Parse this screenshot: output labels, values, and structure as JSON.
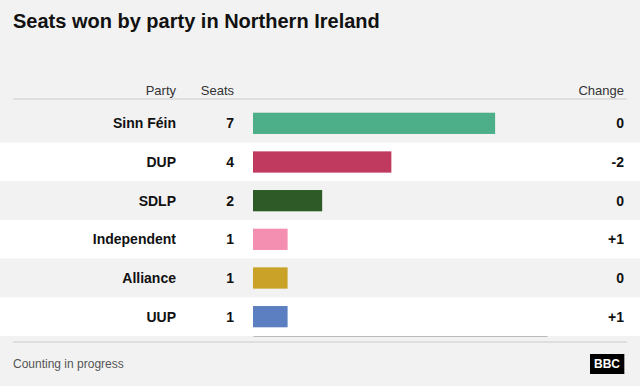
{
  "chart_data": {
    "type": "bar",
    "orientation": "horizontal",
    "title": "Seats won by party in Northern Ireland",
    "column_headers": [
      "Party",
      "Seats",
      "Change"
    ],
    "categories": [
      "Sinn Féin",
      "DUP",
      "SDLP",
      "Independent",
      "Alliance",
      "UUP"
    ],
    "values": [
      7,
      4,
      2,
      1,
      1,
      1
    ],
    "changes": [
      "0",
      "-2",
      "0",
      "+1",
      "0",
      "+1"
    ],
    "colors": [
      "#4caf8a",
      "#c0395e",
      "#2d5a27",
      "#f48fb1",
      "#c9a227",
      "#5b7fc1"
    ],
    "xlim": [
      0,
      8.5
    ],
    "tick_labels": false,
    "data_labels": true,
    "grid": false,
    "annotations": [
      "Counting in progress",
      "BBC"
    ]
  }
}
